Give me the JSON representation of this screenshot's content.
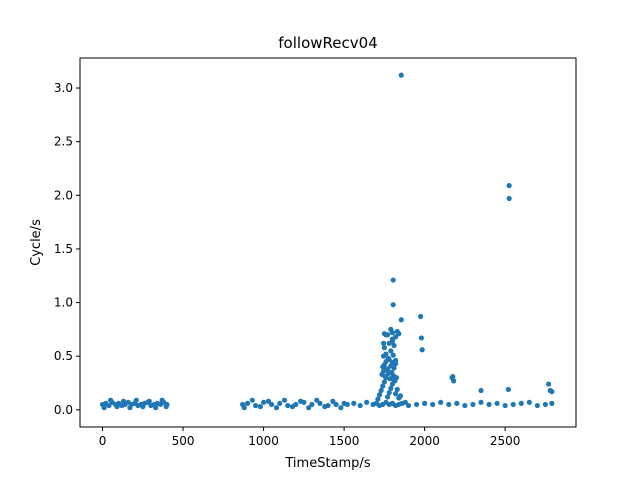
{
  "chart_data": {
    "type": "scatter",
    "title": "followRecv04",
    "xlabel": "TimeStamp/s",
    "ylabel": "Cycle/s",
    "xlim": [
      -140,
      2940
    ],
    "ylim": [
      -0.16,
      3.28
    ],
    "xticks": [
      0,
      500,
      1000,
      1500,
      2000,
      2500
    ],
    "xtick_labels": [
      "0",
      "500",
      "1000",
      "1500",
      "2000",
      "2500"
    ],
    "yticks": [
      0.0,
      0.5,
      1.0,
      1.5,
      2.0,
      2.5,
      3.0
    ],
    "ytick_labels": [
      "0.0",
      "0.5",
      "1.0",
      "1.5",
      "2.0",
      "2.5",
      "3.0"
    ],
    "grid": false,
    "color": "#1f77b4",
    "series": [
      {
        "x": [
          0,
          20,
          40,
          60,
          80,
          100,
          120,
          140,
          160,
          180,
          200,
          220,
          240,
          260,
          280,
          300,
          320,
          340,
          360,
          380,
          400,
          10,
          50,
          90,
          130,
          170,
          210,
          250,
          290,
          330,
          370,
          395,
          870,
          900,
          950,
          1000,
          1050,
          1100,
          1150,
          1200,
          1250,
          1300,
          1350,
          1400,
          1450,
          1500,
          880,
          930,
          980,
          1030,
          1080,
          1130,
          1180,
          1230,
          1280,
          1330,
          1380,
          1430,
          1480,
          1520,
          1560,
          1600,
          1640,
          1680,
          1700,
          1720,
          1740,
          1760,
          1780,
          1800,
          1820,
          1840,
          1860,
          1880,
          1900,
          1950,
          2000,
          2050,
          2100,
          2150,
          2200,
          2250,
          2300,
          2350,
          2400,
          2450,
          2500,
          2550,
          2600,
          2650,
          2700,
          2750,
          2790,
          1710,
          1720,
          1730,
          1740,
          1750,
          1760,
          1770,
          1780,
          1790,
          1800,
          1810,
          1820,
          1830,
          1840,
          1850,
          1735,
          1745,
          1755,
          1765,
          1775,
          1785,
          1795,
          1805,
          1815,
          1825,
          1740,
          1750,
          1760,
          1770,
          1780,
          1790,
          1800,
          1810,
          1820,
          1745,
          1760,
          1775,
          1790,
          1805,
          1820,
          1750,
          1780,
          1800,
          1770,
          1810,
          1800,
          1820,
          1830,
          1790,
          1840,
          1750,
          1760,
          1975,
          1980,
          1985,
          2170,
          2180,
          2175,
          2350,
          2520,
          2770,
          2780,
          2790,
          1805,
          1855,
          1805,
          1745,
          1800,
          2525,
          2525,
          1855
        ],
        "y": [
          0.05,
          0.06,
          0.04,
          0.07,
          0.05,
          0.06,
          0.04,
          0.05,
          0.07,
          0.05,
          0.06,
          0.04,
          0.05,
          0.06,
          0.07,
          0.04,
          0.05,
          0.06,
          0.05,
          0.07,
          0.05,
          0.02,
          0.09,
          0.03,
          0.08,
          0.02,
          0.09,
          0.03,
          0.08,
          0.02,
          0.09,
          0.03,
          0.05,
          0.06,
          0.04,
          0.07,
          0.05,
          0.06,
          0.04,
          0.05,
          0.07,
          0.05,
          0.06,
          0.04,
          0.05,
          0.06,
          0.02,
          0.09,
          0.03,
          0.08,
          0.02,
          0.09,
          0.03,
          0.08,
          0.02,
          0.09,
          0.03,
          0.08,
          0.02,
          0.05,
          0.06,
          0.04,
          0.07,
          0.05,
          0.06,
          0.04,
          0.05,
          0.07,
          0.05,
          0.06,
          0.04,
          0.05,
          0.06,
          0.07,
          0.04,
          0.05,
          0.06,
          0.05,
          0.07,
          0.05,
          0.06,
          0.04,
          0.05,
          0.07,
          0.05,
          0.06,
          0.04,
          0.05,
          0.06,
          0.07,
          0.04,
          0.05,
          0.06,
          0.1,
          0.14,
          0.18,
          0.22,
          0.26,
          0.3,
          0.12,
          0.16,
          0.2,
          0.24,
          0.28,
          0.15,
          0.19,
          0.11,
          0.13,
          0.33,
          0.36,
          0.31,
          0.38,
          0.34,
          0.29,
          0.35,
          0.32,
          0.27,
          0.3,
          0.4,
          0.42,
          0.45,
          0.38,
          0.47,
          0.41,
          0.44,
          0.39,
          0.43,
          0.5,
          0.52,
          0.48,
          0.55,
          0.51,
          0.46,
          0.58,
          0.62,
          0.66,
          0.7,
          0.6,
          0.72,
          0.68,
          0.73,
          0.75,
          0.71,
          0.71,
          0.7,
          0.87,
          0.67,
          0.56,
          0.3,
          0.27,
          0.31,
          0.18,
          0.19,
          0.24,
          0.18,
          0.17,
          0.98,
          0.84,
          1.21,
          0.62,
          0.64,
          1.97,
          2.09,
          3.12
        ]
      }
    ]
  }
}
